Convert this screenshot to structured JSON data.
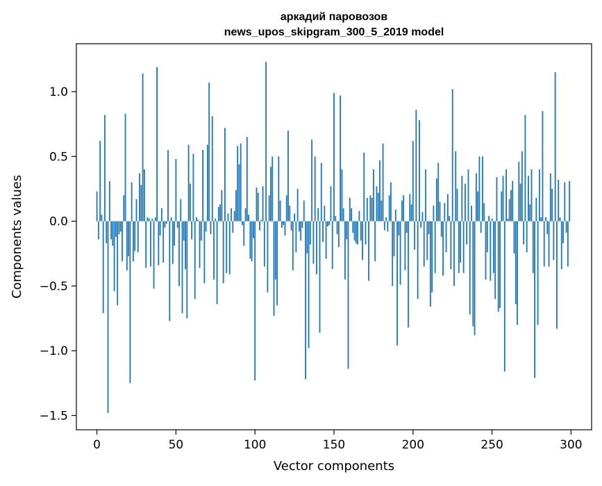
{
  "chart_data": {
    "type": "bar",
    "title": "аркадий паровозов",
    "subtitle": "news_upos_skipgram_300_5_2019 model",
    "xlabel": "Vector components",
    "ylabel": "Components values",
    "xlim": [
      -13,
      313
    ],
    "ylim": [
      -1.61,
      1.37
    ],
    "xticks": [
      0,
      50,
      100,
      150,
      200,
      250,
      300
    ],
    "xtick_labels": [
      "0",
      "50",
      "100",
      "150",
      "200",
      "250",
      "300"
    ],
    "yticks": [
      -1.5,
      -1.0,
      -0.5,
      0.0,
      0.5,
      1.0
    ],
    "ytick_labels": [
      "−1.5",
      "−1.0",
      "−0.5",
      "0.0",
      "0.5",
      "1.0"
    ],
    "grid": false,
    "bar_color": "#1f77b4",
    "values": [
      0.23,
      -0.14,
      0.62,
      0.05,
      -0.71,
      0.82,
      -0.17,
      -1.48,
      0.31,
      -0.14,
      -0.19,
      -0.54,
      -0.12,
      -0.65,
      -0.1,
      -0.08,
      -0.31,
      0.2,
      0.83,
      -0.38,
      -0.27,
      -1.25,
      0.3,
      -0.31,
      -0.23,
      0.17,
      -0.24,
      0.37,
      0.28,
      1.14,
      0.4,
      -0.36,
      0.03,
      0.02,
      -0.35,
      0.02,
      -0.52,
      0.03,
      1.19,
      -0.34,
      -0.11,
      0.1,
      -0.32,
      -0.05,
      -0.02,
      0.55,
      -0.77,
      0.03,
      -0.33,
      -0.19,
      0.48,
      -0.05,
      -0.5,
      0.17,
      -0.71,
      -0.15,
      -0.37,
      -0.75,
      0.59,
      0.29,
      -0.14,
      0.52,
      -0.6,
      0.03,
      0.01,
      -0.36,
      -0.15,
      0.55,
      -0.48,
      -0.08,
      0.59,
      1.07,
      -0.1,
      0.81,
      -0.45,
      0.02,
      -0.64,
      0.11,
      0.13,
      0.24,
      -0.48,
      0.72,
      -0.4,
      0.06,
      -0.41,
      0.1,
      -0.09,
      0.08,
      0.24,
      0.58,
      0.44,
      0.6,
      -0.03,
      -0.19,
      0.1,
      0.65,
      0.05,
      -0.29,
      -0.31,
      -0.13,
      -1.23,
      0.26,
      0.22,
      -0.07,
      0.01,
      0.27,
      -0.35,
      1.23,
      -0.55,
      0.2,
      0.42,
      0.5,
      -0.73,
      -0.45,
      -0.65,
      0.5,
      0.16,
      -0.05,
      -0.03,
      -0.11,
      0.2,
      0.7,
      0.12,
      -0.07,
      -0.38,
      0.06,
      -0.24,
      0.25,
      -0.08,
      -0.15,
      -0.05,
      0.16,
      -1.22,
      -0.25,
      -0.98,
      -0.18,
      0.63,
      -0.33,
      0.5,
      -0.41,
      0.1,
      -0.86,
      0.45,
      -0.16,
      0.12,
      -0.29,
      -0.04,
      -0.03,
      0.27,
      -0.37,
      0.99,
      0.04,
      -0.1,
      -0.2,
      0.97,
      0.4,
      0.1,
      -0.45,
      -0.14,
      -1.14,
      0.18,
      0.1,
      -0.09,
      -0.15,
      -0.17,
      -0.18,
      0.08,
      -0.15,
      -0.3,
      0.53,
      -0.18,
      0.18,
      -0.46,
      0.2,
      0.18,
      0.4,
      -0.31,
      0.27,
      0.22,
      0.47,
      0.16,
      0.6,
      -0.07,
      0.03,
      -0.08,
      0.2,
      0.3,
      -0.5,
      -0.27,
      0.09,
      -0.96,
      -0.11,
      -0.49,
      0.16,
      0.2,
      -0.38,
      -0.09,
      -0.82,
      0.21,
      0.13,
      0.62,
      -0.22,
      0.86,
      -0.6,
      0.78,
      -0.05,
      0.07,
      -0.35,
      0.4,
      -0.3,
      -0.1,
      -0.66,
      -0.55,
      0.12,
      -0.4,
      0.33,
      0.45,
      0.15,
      -0.12,
      -0.42,
      0.14,
      -0.24,
      0.21,
      0.04,
      -0.37,
      1.02,
      -0.5,
      0.54,
      0.25,
      -0.4,
      -0.32,
      0.35,
      -0.4,
      0.29,
      -0.18,
      0.4,
      -0.72,
      0.12,
      -0.81,
      -0.88,
      0.37,
      0.23,
      0.5,
      -0.09,
      0.5,
      0.14,
      -0.45,
      -0.24,
      0.04,
      -0.46,
      0.02,
      -0.4,
      -0.6,
      0.34,
      -0.7,
      -0.67,
      0.23,
      0.35,
      -1.16,
      0.4,
      0.02,
      0.17,
      0.24,
      0.31,
      -0.25,
      -0.64,
      -0.8,
      0.46,
      0.29,
      0.54,
      -0.18,
      0.82,
      -0.24,
      0.35,
      0.13,
      0.4,
      -0.4,
      -1.21,
      0.18,
      -0.8,
      0.4,
      0.03,
      0.85,
      -0.35,
      0.03,
      -0.1,
      -0.35,
      0.37,
      0.25,
      -0.3,
      1.15,
      -0.83,
      0.32,
      0.03,
      -0.37,
      -0.17,
      0.3,
      -0.09,
      -0.35,
      0.31
    ]
  }
}
